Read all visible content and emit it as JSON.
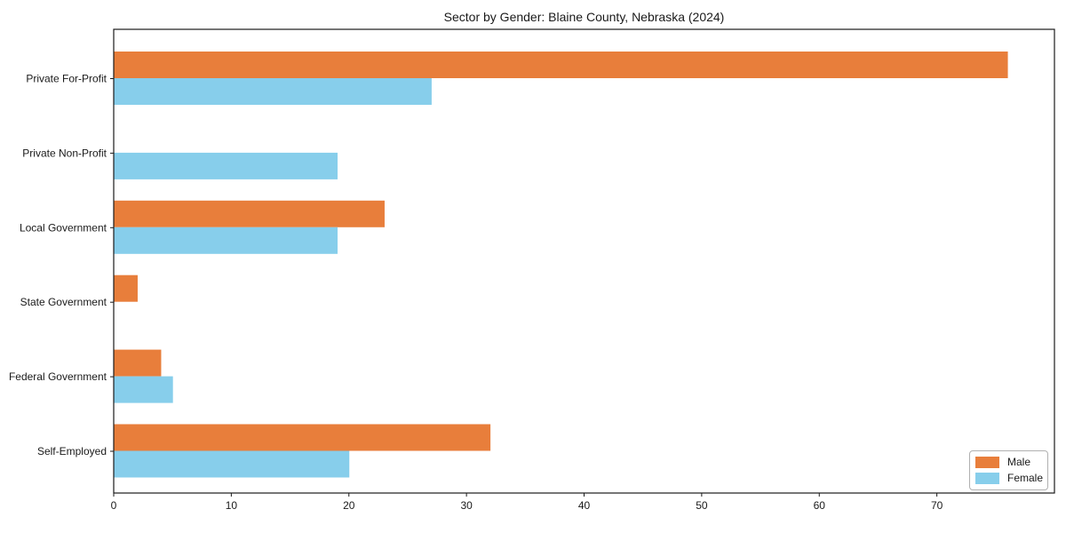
{
  "chart_data": {
    "type": "bar",
    "orientation": "horizontal",
    "title": "Sector by Gender: Blaine County, Nebraska (2024)",
    "categories": [
      "Private For-Profit",
      "Private Non-Profit",
      "Local Government",
      "State Government",
      "Federal Government",
      "Self-Employed"
    ],
    "series": [
      {
        "name": "Male",
        "color": "#e87e3b",
        "values": [
          76,
          0,
          23,
          2,
          4,
          32
        ]
      },
      {
        "name": "Female",
        "color": "#87ceeb",
        "values": [
          27,
          19,
          19,
          0,
          5,
          20
        ]
      }
    ],
    "xlabel": "",
    "ylabel": "",
    "xlim": [
      0,
      80
    ],
    "xticks": [
      0,
      10,
      20,
      30,
      40,
      50,
      60,
      70
    ],
    "grid": false,
    "legend_position": "lower right"
  },
  "colors": {
    "axis": "#1a1a1a",
    "text": "#1a1a1a",
    "background": "#ffffff",
    "legend_border": "#b0b0b0"
  }
}
